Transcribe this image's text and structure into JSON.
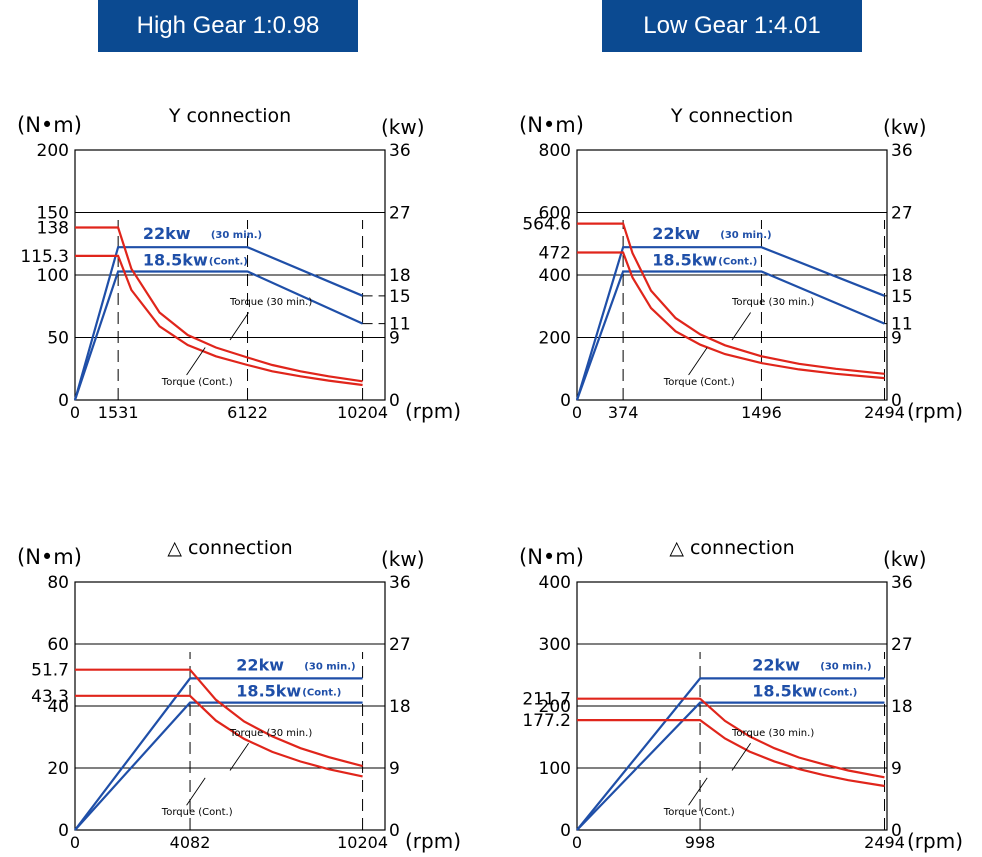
{
  "headers": {
    "left": "High Gear 1:0.98",
    "right": "Low Gear 1:4.01"
  },
  "chart_data": [
    {
      "type": "line",
      "title": "Y connection",
      "ylabel_left": "(N•m)",
      "ylabel_right": "(kw)",
      "xlabel": "(rpm)",
      "x_ticks": [
        "0",
        "1531",
        "6122",
        "10204"
      ],
      "x_tick_values": [
        0,
        1531,
        6122,
        10204
      ],
      "xlim": [
        0,
        11000
      ],
      "torque_ticks": [
        0,
        50,
        100,
        150,
        200
      ],
      "torque_labels": [
        "0",
        "50",
        "100",
        "150",
        "200"
      ],
      "torque_extra_ticks": [
        115.3,
        138
      ],
      "torque_extra_labels": [
        "115.3",
        "138"
      ],
      "torque_lim": [
        0,
        200
      ],
      "power_ticks": [
        "0",
        "9",
        "11",
        "15",
        "18",
        "27",
        "36"
      ],
      "power_tick_values": [
        0,
        9,
        11,
        15,
        18,
        27,
        36
      ],
      "power_lim": [
        0,
        36
      ],
      "series": [
        {
          "name": "22kw (30 min.)",
          "axis": "power",
          "color": "#1f4fa8",
          "x": [
            0,
            1531,
            6122,
            10204
          ],
          "y": [
            0,
            22,
            22,
            15
          ]
        },
        {
          "name": "18.5kw (Cont.)",
          "axis": "power",
          "color": "#1f4fa8",
          "x": [
            0,
            1531,
            6122,
            10204
          ],
          "y": [
            0,
            18.5,
            18.5,
            11
          ]
        },
        {
          "name": "Torque (30 min.)",
          "axis": "torque",
          "color": "#e0251b",
          "x": [
            0,
            1531,
            2000,
            3000,
            4000,
            5000,
            6122,
            7000,
            8000,
            9000,
            10204
          ],
          "y": [
            138,
            138,
            105,
            70,
            52,
            42,
            34,
            28,
            23,
            19,
            15
          ]
        },
        {
          "name": "Torque (Cont.)",
          "axis": "torque",
          "color": "#e0251b",
          "x": [
            0,
            1531,
            2000,
            3000,
            4000,
            5000,
            6122,
            7000,
            8000,
            9000,
            10204
          ],
          "y": [
            115.3,
            115.3,
            88,
            59,
            44,
            35,
            28,
            23,
            19,
            15.5,
            12
          ]
        }
      ],
      "labels": {
        "power_30": "22kw",
        "power_30_note": "(30 min.)",
        "power_cont": "18.5kw",
        "power_cont_note": "(Cont.)",
        "torque_30": "Torque (30 min.)",
        "torque_cont": "Torque (Cont.)"
      }
    },
    {
      "type": "line",
      "title": "Y connection",
      "ylabel_left": "(N•m)",
      "ylabel_right": "(kw)",
      "xlabel": "(rpm)",
      "x_ticks": [
        "0",
        "374",
        "1496",
        "2494"
      ],
      "x_tick_values": [
        0,
        374,
        1496,
        2494
      ],
      "xlim": [
        0,
        2494
      ],
      "torque_ticks": [
        0,
        200,
        400,
        600,
        800
      ],
      "torque_labels": [
        "0",
        "200",
        "400",
        "600",
        "800"
      ],
      "torque_extra_ticks": [
        472,
        564.6
      ],
      "torque_extra_labels": [
        "472",
        "564.6"
      ],
      "torque_lim": [
        0,
        800
      ],
      "power_ticks": [
        "0",
        "9",
        "11",
        "15",
        "18",
        "27",
        "36"
      ],
      "power_tick_values": [
        0,
        9,
        11,
        15,
        18,
        27,
        36
      ],
      "power_lim": [
        0,
        36
      ],
      "series": [
        {
          "name": "22kw (30 min.)",
          "axis": "power",
          "color": "#1f4fa8",
          "x": [
            0,
            374,
            1496,
            2494
          ],
          "y": [
            0,
            22,
            22,
            15
          ]
        },
        {
          "name": "18.5kw (Cont.)",
          "axis": "power",
          "color": "#1f4fa8",
          "x": [
            0,
            374,
            1496,
            2494
          ],
          "y": [
            0,
            18.5,
            18.5,
            11
          ]
        },
        {
          "name": "Torque (30 min.)",
          "axis": "torque",
          "color": "#e0251b",
          "x": [
            0,
            374,
            450,
            600,
            800,
            1000,
            1200,
            1496,
            1800,
            2100,
            2494
          ],
          "y": [
            564.6,
            564.6,
            470,
            350,
            262,
            210,
            175,
            140,
            116,
            100,
            84
          ]
        },
        {
          "name": "Torque (Cont.)",
          "axis": "torque",
          "color": "#e0251b",
          "x": [
            0,
            374,
            450,
            600,
            800,
            1000,
            1200,
            1496,
            1800,
            2100,
            2494
          ],
          "y": [
            472,
            472,
            392,
            294,
            220,
            177,
            147,
            118,
            98,
            84,
            70
          ]
        }
      ],
      "labels": {
        "power_30": "22kw",
        "power_30_note": "(30 min.)",
        "power_cont": "18.5kw",
        "power_cont_note": "(Cont.)",
        "torque_30": "Torque (30 min.)",
        "torque_cont": "Torque (Cont.)"
      }
    },
    {
      "type": "line",
      "title": "△ connection",
      "ylabel_left": "(N•m)",
      "ylabel_right": "(kw)",
      "xlabel": "(rpm)",
      "x_ticks": [
        "0",
        "4082",
        "10204"
      ],
      "x_tick_values": [
        0,
        4082,
        10204
      ],
      "xlim": [
        0,
        11000
      ],
      "torque_ticks": [
        0,
        20,
        40,
        60,
        80
      ],
      "torque_labels": [
        "0",
        "20",
        "40",
        "60",
        "80"
      ],
      "torque_extra_ticks": [
        43.3,
        51.7
      ],
      "torque_extra_labels": [
        "43.3",
        "51.7"
      ],
      "torque_lim": [
        0,
        80
      ],
      "power_ticks": [
        "0",
        "9",
        "18",
        "27",
        "36"
      ],
      "power_tick_values": [
        0,
        9,
        18,
        27,
        36
      ],
      "power_lim": [
        0,
        36
      ],
      "series": [
        {
          "name": "22kw (30 min.)",
          "axis": "power",
          "color": "#1f4fa8",
          "x": [
            0,
            4082,
            10204
          ],
          "y": [
            0,
            22,
            22
          ]
        },
        {
          "name": "18.5kw (Cont.)",
          "axis": "power",
          "color": "#1f4fa8",
          "x": [
            0,
            4082,
            10204
          ],
          "y": [
            0,
            18.5,
            18.5
          ]
        },
        {
          "name": "Torque (30 min.)",
          "axis": "torque",
          "color": "#e0251b",
          "x": [
            0,
            4082,
            5000,
            6000,
            7000,
            8000,
            9000,
            10204
          ],
          "y": [
            51.7,
            51.7,
            42,
            35,
            30.2,
            26.4,
            23.5,
            20.6
          ]
        },
        {
          "name": "Torque (Cont.)",
          "axis": "torque",
          "color": "#e0251b",
          "x": [
            0,
            4082,
            5000,
            6000,
            7000,
            8000,
            9000,
            10204
          ],
          "y": [
            43.3,
            43.3,
            35.3,
            29.4,
            25.2,
            22.1,
            19.6,
            17.3
          ]
        }
      ],
      "labels": {
        "power_30": "22kw",
        "power_30_note": "(30 min.)",
        "power_cont": "18.5kw",
        "power_cont_note": "(Cont.)",
        "torque_30": "Torque (30 min.)",
        "torque_cont": "Torque (Cont.)"
      }
    },
    {
      "type": "line",
      "title": "△ connection",
      "ylabel_left": "(N•m)",
      "ylabel_right": "(kw)",
      "xlabel": "(rpm)",
      "x_ticks": [
        "0",
        "998",
        "2494"
      ],
      "x_tick_values": [
        0,
        998,
        2494
      ],
      "xlim": [
        0,
        2494
      ],
      "torque_ticks": [
        0,
        100,
        200,
        300,
        400
      ],
      "torque_labels": [
        "0",
        "100",
        "200",
        "300",
        "400"
      ],
      "torque_extra_ticks": [
        177.2,
        211.7
      ],
      "torque_extra_labels": [
        "177.2",
        "211.7"
      ],
      "torque_lim": [
        0,
        400
      ],
      "power_ticks": [
        "0",
        "9",
        "18",
        "27",
        "36"
      ],
      "power_tick_values": [
        0,
        9,
        18,
        27,
        36
      ],
      "power_lim": [
        0,
        36
      ],
      "series": [
        {
          "name": "22kw (30 min.)",
          "axis": "power",
          "color": "#1f4fa8",
          "x": [
            0,
            998,
            2494
          ],
          "y": [
            0,
            22,
            22
          ]
        },
        {
          "name": "18.5kw (Cont.)",
          "axis": "power",
          "color": "#1f4fa8",
          "x": [
            0,
            998,
            2494
          ],
          "y": [
            0,
            18.5,
            18.5
          ]
        },
        {
          "name": "Torque (30 min.)",
          "axis": "torque",
          "color": "#e0251b",
          "x": [
            0,
            998,
            1200,
            1400,
            1600,
            1800,
            2000,
            2200,
            2494
          ],
          "y": [
            211.7,
            211.7,
            176,
            151,
            132,
            117,
            106,
            96,
            85
          ]
        },
        {
          "name": "Torque (Cont.)",
          "axis": "torque",
          "color": "#e0251b",
          "x": [
            0,
            998,
            1200,
            1400,
            1600,
            1800,
            2000,
            2200,
            2494
          ],
          "y": [
            177.2,
            177.2,
            147.5,
            126.5,
            110.6,
            98.3,
            88.5,
            80.4,
            71
          ]
        }
      ],
      "labels": {
        "power_30": "22kw",
        "power_30_note": "(30 min.)",
        "power_cont": "18.5kw",
        "power_cont_note": "(Cont.)",
        "torque_30": "Torque (30 min.)",
        "torque_cont": "Torque (Cont.)"
      }
    }
  ]
}
